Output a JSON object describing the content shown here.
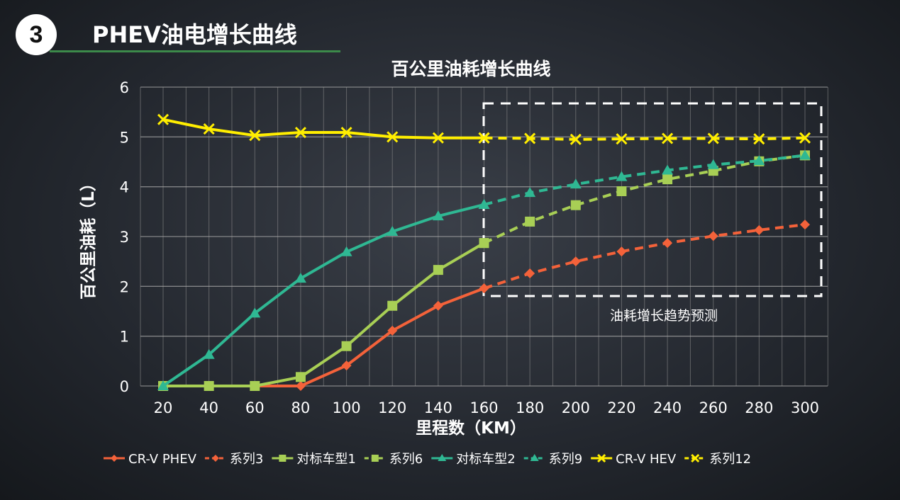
{
  "header": {
    "number": "3",
    "title": "PHEV油电增长曲线"
  },
  "chart_data": {
    "type": "line",
    "title": "百公里油耗增长曲线",
    "xlabel": "里程数（KM）",
    "ylabel": "百公里油耗（L）",
    "x": [
      20,
      40,
      60,
      80,
      100,
      120,
      140,
      160,
      180,
      200,
      220,
      240,
      260,
      280,
      300
    ],
    "ylim": [
      0,
      6
    ],
    "yticks": [
      0,
      1,
      2,
      3,
      4,
      5,
      6
    ],
    "grid": true,
    "legend_position": "bottom",
    "annotation": "油耗增长趋势预测",
    "series": [
      {
        "name": "CR-V PHEV",
        "color": "#f4623a",
        "marker": "diamond",
        "dashed": false,
        "x": [
          20,
          40,
          60,
          80,
          100,
          120,
          140,
          160
        ],
        "values": [
          0,
          0,
          0,
          0,
          0.41,
          1.11,
          1.61,
          1.96
        ]
      },
      {
        "name": "系列3",
        "color": "#f4623a",
        "marker": "diamond",
        "dashed": true,
        "x": [
          160,
          180,
          200,
          220,
          240,
          260,
          280,
          300
        ],
        "values": [
          1.96,
          2.26,
          2.5,
          2.7,
          2.87,
          3.01,
          3.13,
          3.24
        ]
      },
      {
        "name": "对标车型1",
        "color": "#a8cf55",
        "marker": "square",
        "dashed": false,
        "x": [
          20,
          40,
          60,
          80,
          100,
          120,
          140,
          160
        ],
        "values": [
          0,
          0,
          0,
          0.18,
          0.8,
          1.61,
          2.33,
          2.87
        ]
      },
      {
        "name": "系列6",
        "color": "#a8cf55",
        "marker": "square",
        "dashed": true,
        "x": [
          160,
          180,
          200,
          220,
          240,
          260,
          280,
          300
        ],
        "values": [
          2.87,
          3.3,
          3.63,
          3.91,
          4.15,
          4.32,
          4.51,
          4.63
        ]
      },
      {
        "name": "对标车型2",
        "color": "#2fb893",
        "marker": "triangle",
        "dashed": false,
        "x": [
          20,
          40,
          60,
          80,
          100,
          120,
          140,
          160
        ],
        "values": [
          0,
          0.63,
          1.46,
          2.16,
          2.69,
          3.1,
          3.41,
          3.64
        ]
      },
      {
        "name": "系列9",
        "color": "#2fb893",
        "marker": "triangle",
        "dashed": true,
        "x": [
          160,
          180,
          200,
          220,
          240,
          260,
          280,
          300
        ],
        "values": [
          3.64,
          3.88,
          4.05,
          4.2,
          4.33,
          4.44,
          4.52,
          4.63
        ]
      },
      {
        "name": "CR-V HEV",
        "color": "#ffee00",
        "marker": "x",
        "dashed": false,
        "x": [
          20,
          40,
          60,
          80,
          100,
          120,
          140,
          160
        ],
        "values": [
          5.35,
          5.16,
          5.03,
          5.09,
          5.09,
          5.0,
          4.98,
          4.98
        ]
      },
      {
        "name": "系列12",
        "color": "#ffee00",
        "marker": "x",
        "dashed": true,
        "x": [
          160,
          180,
          200,
          220,
          240,
          260,
          280,
          300
        ],
        "values": [
          4.98,
          4.97,
          4.95,
          4.96,
          4.97,
          4.97,
          4.96,
          4.98
        ]
      }
    ]
  }
}
